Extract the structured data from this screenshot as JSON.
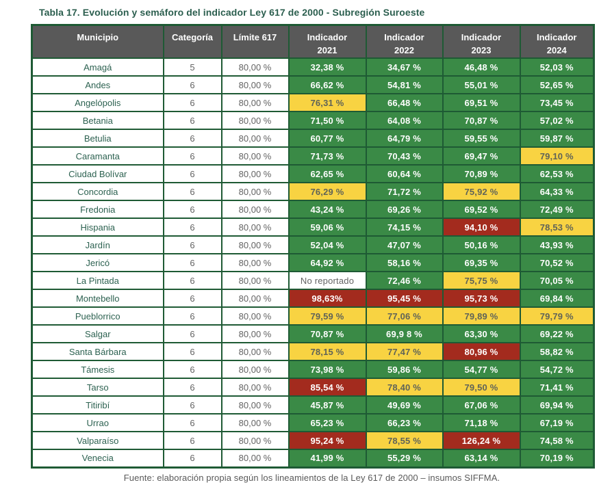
{
  "page": {
    "title": "Tabla 17. Evolución y semáforo del indicador Ley 617 de 2000 - Subregión Suroeste",
    "source": "Fuente: elaboración propia según los lineamientos de la Ley 617 de 2000 – insumos SIFFMA."
  },
  "colors": {
    "green": "#3A8A46",
    "yellow": "#F8D342",
    "red": "#A32B1E",
    "border": "#1E5A34",
    "header_bg": "#595959",
    "title_text": "#2B5E4E",
    "municipio_text": "#2C6150",
    "muted_text": "#636363"
  },
  "table": {
    "columns": [
      {
        "label": "Municipio"
      },
      {
        "label": "Categoría"
      },
      {
        "label": "Límite 617"
      },
      {
        "label": "Indicador",
        "sub": "2021"
      },
      {
        "label": "Indicador",
        "sub": "2022"
      },
      {
        "label": "Indicador",
        "sub": "2023"
      },
      {
        "label": "Indicador",
        "sub": "2024"
      }
    ],
    "rows": [
      {
        "municipio": "Amagá",
        "categoria": "5",
        "limite": "80,00 %",
        "indicadores": [
          {
            "value": "32,38 %",
            "status": "green"
          },
          {
            "value": "34,67 %",
            "status": "green"
          },
          {
            "value": "46,48 %",
            "status": "green"
          },
          {
            "value": "52,03 %",
            "status": "green"
          }
        ]
      },
      {
        "municipio": "Andes",
        "categoria": "6",
        "limite": "80,00 %",
        "indicadores": [
          {
            "value": "66,62 %",
            "status": "green"
          },
          {
            "value": "54,81 %",
            "status": "green"
          },
          {
            "value": "55,01 %",
            "status": "green"
          },
          {
            "value": "52,65 %",
            "status": "green"
          }
        ]
      },
      {
        "municipio": "Angelópolis",
        "categoria": "6",
        "limite": "80,00 %",
        "indicadores": [
          {
            "value": "76,31 %",
            "status": "yellow"
          },
          {
            "value": "66,48 %",
            "status": "green"
          },
          {
            "value": "69,51 %",
            "status": "green"
          },
          {
            "value": "73,45 %",
            "status": "green"
          }
        ]
      },
      {
        "municipio": "Betania",
        "categoria": "6",
        "limite": "80,00 %",
        "indicadores": [
          {
            "value": "71,50 %",
            "status": "green"
          },
          {
            "value": "64,08 %",
            "status": "green"
          },
          {
            "value": "70,87 %",
            "status": "green"
          },
          {
            "value": "57,02 %",
            "status": "green"
          }
        ]
      },
      {
        "municipio": "Betulia",
        "categoria": "6",
        "limite": "80,00 %",
        "indicadores": [
          {
            "value": "60,77 %",
            "status": "green"
          },
          {
            "value": "64,79 %",
            "status": "green"
          },
          {
            "value": "59,55 %",
            "status": "green"
          },
          {
            "value": "59,87 %",
            "status": "green"
          }
        ]
      },
      {
        "municipio": "Caramanta",
        "categoria": "6",
        "limite": "80,00 %",
        "indicadores": [
          {
            "value": "71,73 %",
            "status": "green"
          },
          {
            "value": "70,43 %",
            "status": "green"
          },
          {
            "value": "69,47 %",
            "status": "green"
          },
          {
            "value": "79,10 %",
            "status": "yellow"
          }
        ]
      },
      {
        "municipio": "Ciudad Bolívar",
        "categoria": "6",
        "limite": "80,00 %",
        "indicadores": [
          {
            "value": "62,65 %",
            "status": "green"
          },
          {
            "value": "60,64 %",
            "status": "green"
          },
          {
            "value": "70,89 %",
            "status": "green"
          },
          {
            "value": "62,53 %",
            "status": "green"
          }
        ]
      },
      {
        "municipio": "Concordia",
        "categoria": "6",
        "limite": "80,00 %",
        "indicadores": [
          {
            "value": "76,29 %",
            "status": "yellow"
          },
          {
            "value": "71,72 %",
            "status": "green"
          },
          {
            "value": "75,92 %",
            "status": "yellow"
          },
          {
            "value": "64,33 %",
            "status": "green"
          }
        ]
      },
      {
        "municipio": "Fredonia",
        "categoria": "6",
        "limite": "80,00 %",
        "indicadores": [
          {
            "value": "43,24 %",
            "status": "green"
          },
          {
            "value": "69,26 %",
            "status": "green"
          },
          {
            "value": "69,52 %",
            "status": "green"
          },
          {
            "value": "72,49 %",
            "status": "green"
          }
        ]
      },
      {
        "municipio": "Hispania",
        "categoria": "6",
        "limite": "80,00 %",
        "indicadores": [
          {
            "value": "59,06 %",
            "status": "green"
          },
          {
            "value": "74,15 %",
            "status": "green"
          },
          {
            "value": "94,10 %",
            "status": "red"
          },
          {
            "value": "78,53 %",
            "status": "yellow"
          }
        ]
      },
      {
        "municipio": "Jardín",
        "categoria": "6",
        "limite": "80,00 %",
        "indicadores": [
          {
            "value": "52,04 %",
            "status": "green"
          },
          {
            "value": "47,07 %",
            "status": "green"
          },
          {
            "value": "50,16 %",
            "status": "green"
          },
          {
            "value": "43,93 %",
            "status": "green"
          }
        ]
      },
      {
        "municipio": "Jericó",
        "categoria": "6",
        "limite": "80,00 %",
        "indicadores": [
          {
            "value": "64,92 %",
            "status": "green"
          },
          {
            "value": "58,16 %",
            "status": "green"
          },
          {
            "value": "69,35 %",
            "status": "green"
          },
          {
            "value": "70,52 %",
            "status": "green"
          }
        ]
      },
      {
        "municipio": "La Pintada",
        "categoria": "6",
        "limite": "80,00 %",
        "indicadores": [
          {
            "value": "No reportado",
            "status": "none"
          },
          {
            "value": "72,46 %",
            "status": "green"
          },
          {
            "value": "75,75 %",
            "status": "yellow"
          },
          {
            "value": "70,05 %",
            "status": "green"
          }
        ]
      },
      {
        "municipio": "Montebello",
        "categoria": "6",
        "limite": "80,00 %",
        "indicadores": [
          {
            "value": "98,63%",
            "status": "red"
          },
          {
            "value": "95,45 %",
            "status": "red"
          },
          {
            "value": "95,73 %",
            "status": "red"
          },
          {
            "value": "69,84 %",
            "status": "green"
          }
        ]
      },
      {
        "municipio": "Pueblorrico",
        "categoria": "6",
        "limite": "80,00 %",
        "indicadores": [
          {
            "value": "79,59 %",
            "status": "yellow"
          },
          {
            "value": "77,06 %",
            "status": "yellow"
          },
          {
            "value": "79,89 %",
            "status": "yellow"
          },
          {
            "value": "79,79 %",
            "status": "yellow"
          }
        ]
      },
      {
        "municipio": "Salgar",
        "categoria": "6",
        "limite": "80,00 %",
        "indicadores": [
          {
            "value": "70,87 %",
            "status": "green"
          },
          {
            "value": "69,9 8 %",
            "status": "green"
          },
          {
            "value": "63,30 %",
            "status": "green"
          },
          {
            "value": "69,22 %",
            "status": "green"
          }
        ]
      },
      {
        "municipio": "Santa Bárbara",
        "categoria": "6",
        "limite": "80,00 %",
        "indicadores": [
          {
            "value": "78,15 %",
            "status": "yellow"
          },
          {
            "value": "77,47 %",
            "status": "yellow"
          },
          {
            "value": "80,96 %",
            "status": "red"
          },
          {
            "value": "58,82 %",
            "status": "green"
          }
        ]
      },
      {
        "municipio": "Támesis",
        "categoria": "6",
        "limite": "80,00 %",
        "indicadores": [
          {
            "value": "73,98 %",
            "status": "green"
          },
          {
            "value": "59,86 %",
            "status": "green"
          },
          {
            "value": "54,77 %",
            "status": "green"
          },
          {
            "value": "54,72 %",
            "status": "green"
          }
        ]
      },
      {
        "municipio": "Tarso",
        "categoria": "6",
        "limite": "80,00 %",
        "indicadores": [
          {
            "value": "85,54 %",
            "status": "red"
          },
          {
            "value": "78,40 %",
            "status": "yellow"
          },
          {
            "value": "79,50 %",
            "status": "yellow"
          },
          {
            "value": "71,41 %",
            "status": "green"
          }
        ]
      },
      {
        "municipio": "Titiribí",
        "categoria": "6",
        "limite": "80,00 %",
        "indicadores": [
          {
            "value": "45,87 %",
            "status": "green"
          },
          {
            "value": "49,69 %",
            "status": "green"
          },
          {
            "value": "67,06 %",
            "status": "green"
          },
          {
            "value": "69,94 %",
            "status": "green"
          }
        ]
      },
      {
        "municipio": "Urrao",
        "categoria": "6",
        "limite": "80,00 %",
        "indicadores": [
          {
            "value": "65,23 %",
            "status": "green"
          },
          {
            "value": "66,23 %",
            "status": "green"
          },
          {
            "value": "71,18 %",
            "status": "green"
          },
          {
            "value": "67,19 %",
            "status": "green"
          }
        ]
      },
      {
        "municipio": "Valparaíso",
        "categoria": "6",
        "limite": "80,00 %",
        "indicadores": [
          {
            "value": "95,24 %",
            "status": "red"
          },
          {
            "value": "78,55 %",
            "status": "yellow"
          },
          {
            "value": "126,24 %",
            "status": "red"
          },
          {
            "value": "74,58 %",
            "status": "green"
          }
        ]
      },
      {
        "municipio": "Venecia",
        "categoria": "6",
        "limite": "80,00 %",
        "indicadores": [
          {
            "value": "41,99 %",
            "status": "green"
          },
          {
            "value": "55,29 %",
            "status": "green"
          },
          {
            "value": "63,14 %",
            "status": "green"
          },
          {
            "value": "70,19 %",
            "status": "green"
          }
        ]
      }
    ]
  }
}
